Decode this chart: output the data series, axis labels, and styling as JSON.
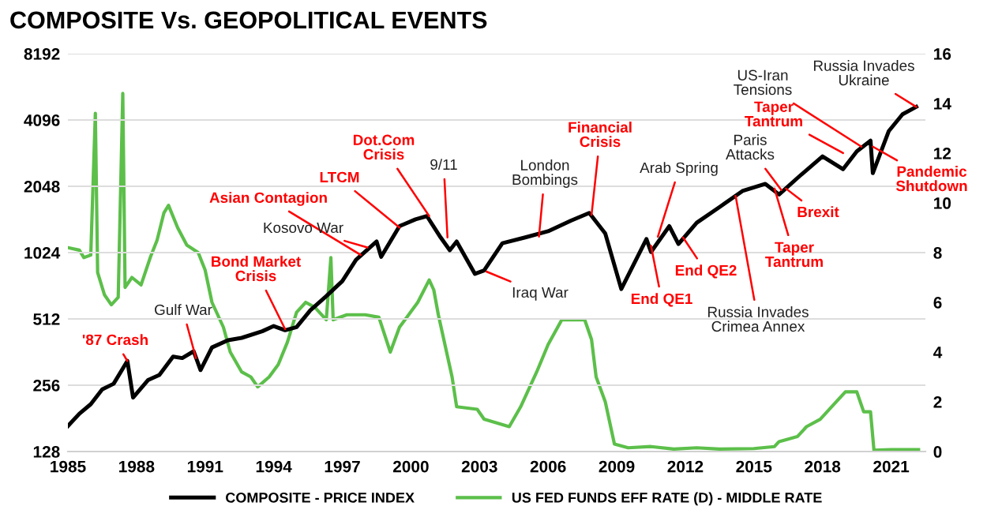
{
  "chart_data": {
    "type": "line",
    "title": "COMPOSITE Vs. GEOPOLITICAL EVENTS",
    "xlim": [
      1985,
      2022.5
    ],
    "xticks": [
      1985,
      1988,
      1991,
      1994,
      1997,
      2000,
      2003,
      2006,
      2009,
      2012,
      2015,
      2018,
      2021
    ],
    "ylim": [
      128,
      8192
    ],
    "yticks": [
      128,
      256,
      512,
      1024,
      2048,
      4096,
      8192
    ],
    "log": true,
    "y2lim": [
      0,
      16
    ],
    "y2ticks": [
      0,
      2,
      4,
      6,
      8,
      10,
      12,
      14,
      16
    ],
    "grid": "y",
    "legend": "bottom",
    "line_style": "solid",
    "marker": "none",
    "series": [
      {
        "name": "COMPOSITE - PRICE INDEX",
        "color": "#000000",
        "x": [
          1985.0,
          1985.5,
          1986.0,
          1986.5,
          1987.0,
          1987.6,
          1987.85,
          1988.5,
          1989.0,
          1989.6,
          1990.0,
          1990.5,
          1990.8,
          1991.3,
          1992.0,
          1992.6,
          1993.5,
          1994.0,
          1994.5,
          1995.0,
          1995.6,
          1996.3,
          1997.0,
          1997.6,
          1998.5,
          1998.7,
          1999.5,
          2000.2,
          2000.7,
          2001.3,
          2001.7,
          2002.0,
          2002.8,
          2003.2,
          2004.0,
          2005.0,
          2006.0,
          2007.0,
          2007.8,
          2008.5,
          2009.2,
          2010.3,
          2010.5,
          2011.3,
          2011.7,
          2012.5,
          2013.5,
          2014.5,
          2015.5,
          2016.1,
          2017.0,
          2018.0,
          2018.9,
          2019.5,
          2020.1,
          2020.2,
          2020.9,
          2021.5,
          2022.1
        ],
        "values": [
          167,
          190,
          210,
          245,
          260,
          330,
          225,
          270,
          285,
          345,
          340,
          365,
          300,
          380,
          410,
          420,
          450,
          475,
          455,
          470,
          560,
          650,
          760,
          950,
          1150,
          980,
          1350,
          1450,
          1500,
          1200,
          1050,
          1150,
          820,
          850,
          1130,
          1200,
          1280,
          1430,
          1550,
          1250,
          700,
          1180,
          1030,
          1350,
          1120,
          1400,
          1650,
          1950,
          2100,
          1880,
          2280,
          2800,
          2450,
          2950,
          3300,
          2350,
          3650,
          4350,
          4700
        ]
      },
      {
        "name": "US FED FUNDS EFF RATE (D) - MIDDLE RATE",
        "color": "#5cbf4a",
        "axis": "y2",
        "x": [
          1985.0,
          1985.5,
          1985.7,
          1986.0,
          1986.2,
          1986.3,
          1986.6,
          1986.9,
          1987.2,
          1987.4,
          1987.5,
          1987.8,
          1988.2,
          1988.6,
          1988.9,
          1989.2,
          1989.4,
          1989.8,
          1990.2,
          1990.7,
          1991.0,
          1991.3,
          1991.8,
          1992.1,
          1992.6,
          1993.0,
          1993.3,
          1993.8,
          1994.2,
          1994.6,
          1995.0,
          1995.4,
          1995.8,
          1996.3,
          1996.5,
          1996.6,
          1997.2,
          1998.0,
          1998.6,
          1999.1,
          1999.5,
          2000.3,
          2000.8,
          2001.0,
          2001.2,
          2001.8,
          2002.0,
          2002.9,
          2003.2,
          2004.3,
          2004.8,
          2005.5,
          2006.0,
          2006.6,
          2007.6,
          2007.9,
          2008.1,
          2008.5,
          2008.9,
          2009.5,
          2010.5,
          2011.5,
          2012.5,
          2013.5,
          2015.0,
          2015.9,
          2016.1,
          2016.9,
          2017.3,
          2017.9,
          2018.5,
          2019.0,
          2019.5,
          2019.8,
          2020.1,
          2020.25,
          2021.0,
          2022.2
        ],
        "values": [
          8.2,
          8.1,
          7.8,
          7.9,
          13.6,
          7.2,
          6.3,
          5.9,
          6.2,
          14.4,
          6.6,
          7.0,
          6.7,
          7.8,
          8.5,
          9.6,
          9.9,
          9.0,
          8.3,
          8.0,
          7.3,
          6.0,
          5.0,
          4.0,
          3.2,
          3.0,
          2.6,
          3.0,
          3.5,
          4.4,
          5.6,
          6.0,
          5.8,
          5.3,
          7.8,
          5.3,
          5.5,
          5.5,
          5.4,
          4.0,
          5.0,
          6.0,
          6.9,
          6.5,
          5.5,
          3.0,
          1.8,
          1.7,
          1.3,
          1.0,
          1.8,
          3.2,
          4.3,
          5.3,
          5.3,
          4.5,
          3.0,
          2.0,
          0.3,
          0.15,
          0.2,
          0.1,
          0.15,
          0.1,
          0.12,
          0.2,
          0.4,
          0.6,
          1.0,
          1.3,
          1.9,
          2.4,
          2.4,
          1.6,
          1.6,
          0.05,
          0.08,
          0.08
        ]
      }
    ],
    "annotations": [
      {
        "text": "'87 Crash",
        "x": 1987.6,
        "y": 330
      },
      {
        "text": "Gulf War",
        "x": 1990.6,
        "y": 340
      },
      {
        "text": "Bond Market\nCrisis",
        "x": 1994.5,
        "y": 460
      },
      {
        "text": "Asian Contagion",
        "x": 1997.8,
        "y": 1000
      },
      {
        "text": "Kosovo War",
        "x": 1998.1,
        "y": 1080
      },
      {
        "text": "LTCM",
        "x": 1999.5,
        "y": 1330
      },
      {
        "text": "Dot.Com\nCrisis",
        "x": 2000.8,
        "y": 1500
      },
      {
        "text": "9/11",
        "x": 2001.6,
        "y": 1200
      },
      {
        "text": "Iraq War",
        "x": 2003.3,
        "y": 840
      },
      {
        "text": "London\nBombings",
        "x": 2005.6,
        "y": 1210
      },
      {
        "text": "Financial\nCrisis",
        "x": 2007.9,
        "y": 1520
      },
      {
        "text": "Arab Spring",
        "x": 2010.8,
        "y": 1210
      },
      {
        "text": "End QE1",
        "x": 2010.5,
        "y": 1100
      },
      {
        "text": "End QE2",
        "x": 2011.9,
        "y": 1200
      },
      {
        "text": "Taper\nTantrum",
        "x": 2015.9,
        "y": 2000
      },
      {
        "text": "Russia Invades\nCrimea Annex",
        "x": 2014.2,
        "y": 1850
      },
      {
        "text": "Paris\nAttacks",
        "x": 2016.2,
        "y": 1970
      },
      {
        "text": "Brexit",
        "x": 2016.4,
        "y": 2000
      },
      {
        "text": "Taper\nTantrum",
        "x": 2018.9,
        "y": 2900
      },
      {
        "text": "US-Iran\nTensions",
        "x": 2019.7,
        "y": 3100
      },
      {
        "text": "Pandemic\nShutdown",
        "x": 2020.2,
        "y": 3100
      },
      {
        "text": "Russia Invades\nUkraine",
        "x": 2022.1,
        "y": 4700
      }
    ]
  }
}
